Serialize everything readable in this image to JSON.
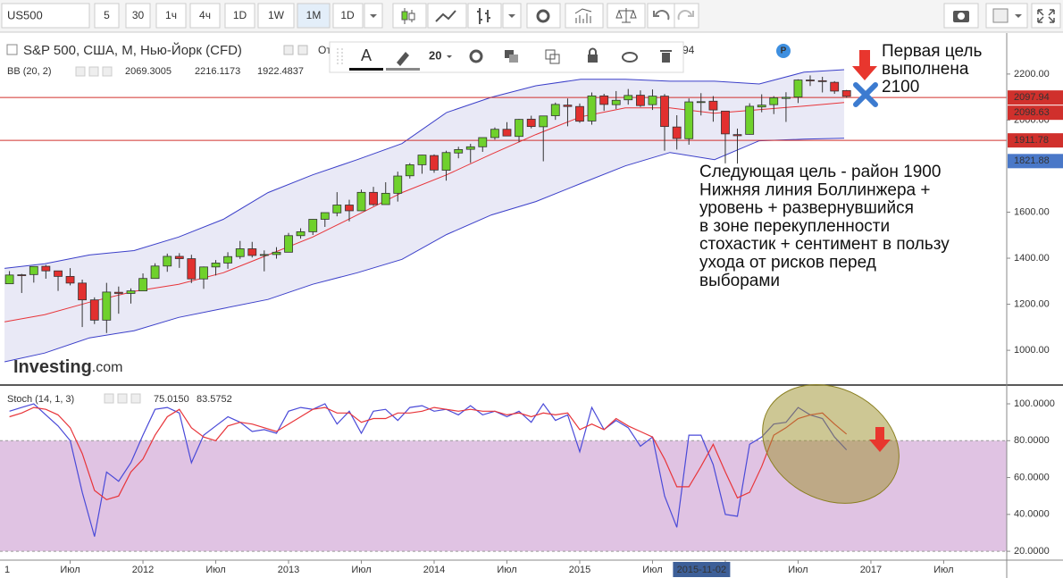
{
  "toolbar": {
    "symbol": "US500",
    "intervals": [
      "5",
      "30",
      "1ч",
      "4ч",
      "1D",
      "1W",
      "1M"
    ],
    "active_index": 6,
    "range": "1D",
    "text_tool": "A",
    "font_size": "20"
  },
  "chart_data": [
    {
      "type": "candlestick",
      "title": "S&P 500, США, M, Нью-Йорк (CFD)",
      "title_extra": "От",
      "clipped_text": "94",
      "watermark": "Investing",
      "watermark_suffix": ".com",
      "indicator": {
        "title": "BB (20, 2)",
        "values": [
          2069.3005,
          2216.1173,
          1922.4837
        ],
        "colors": [
          "#d0302c",
          "#3b3fc9",
          "#3b3fc9"
        ]
      },
      "xlim": [
        2011.018,
        2017.933
      ],
      "ylim": [
        853,
        2378
      ],
      "yticks": [
        {
          "value": 2200,
          "label": "2200.00"
        },
        {
          "value": 2000,
          "label": "2000.00"
        },
        {
          "value": 1600,
          "label": "1600.00"
        },
        {
          "value": 1400,
          "label": "1400.00"
        },
        {
          "value": 1200,
          "label": "1200.00"
        },
        {
          "value": 1000,
          "label": "1000.00"
        }
      ],
      "up_color": "#6fd12c",
      "down_color": "#e2302f",
      "band_fill": "#e4e4f4",
      "candles": {
        "x": [
          2011.083,
          2011.167,
          2011.25,
          2011.333,
          2011.417,
          2011.5,
          2011.583,
          2011.667,
          2011.75,
          2011.833,
          2011.917,
          2012,
          2012.083,
          2012.167,
          2012.25,
          2012.333,
          2012.417,
          2012.5,
          2012.583,
          2012.667,
          2012.75,
          2012.833,
          2012.917,
          2013,
          2013.083,
          2013.167,
          2013.25,
          2013.333,
          2013.417,
          2013.5,
          2013.583,
          2013.667,
          2013.75,
          2013.833,
          2013.917,
          2014,
          2014.083,
          2014.167,
          2014.25,
          2014.333,
          2014.417,
          2014.5,
          2014.583,
          2014.667,
          2014.75,
          2014.833,
          2014.917,
          2015,
          2015.083,
          2015.167,
          2015.25,
          2015.333,
          2015.417,
          2015.5,
          2015.583,
          2015.667,
          2015.75,
          2015.833,
          2015.917,
          2016,
          2016.083,
          2016.167,
          2016.25,
          2016.333,
          2016.417,
          2016.5,
          2016.583,
          2016.667,
          2016.75,
          2016.833
        ],
        "open": [
          1289,
          1328,
          1329,
          1365,
          1345,
          1321,
          1292,
          1219,
          1131,
          1252,
          1247,
          1258,
          1312,
          1366,
          1408,
          1398,
          1310,
          1362,
          1379,
          1407,
          1441,
          1412,
          1416,
          1426,
          1498,
          1515,
          1569,
          1597,
          1631,
          1606,
          1686,
          1633,
          1682,
          1758,
          1806,
          1846,
          1782,
          1857,
          1873,
          1884,
          1924,
          1960,
          1929,
          2004,
          1971,
          2019,
          2065,
          2059,
          1996,
          2105,
          2067,
          2088,
          2108,
          2067,
          2104,
          1970,
          1919,
          2080,
          2082,
          2039,
          1937,
          1938,
          2057,
          2067,
          2094,
          2100,
          2174,
          2171,
          2164,
          2128
        ],
        "high": [
          1344,
          1332,
          1364,
          1371,
          1346,
          1357,
          1307,
          1230,
          1293,
          1277,
          1269,
          1334,
          1378,
          1420,
          1422,
          1415,
          1364,
          1392,
          1426,
          1475,
          1471,
          1434,
          1448,
          1510,
          1530,
          1570,
          1597,
          1687,
          1654,
          1698,
          1710,
          1730,
          1776,
          1813,
          1849,
          1851,
          1867,
          1884,
          1897,
          1924,
          1968,
          1991,
          2005,
          2019,
          2018,
          2076,
          2094,
          2072,
          2120,
          2114,
          2126,
          2135,
          2129,
          2133,
          2113,
          2021,
          2094,
          2117,
          2104,
          2039,
          1963,
          2073,
          2112,
          2104,
          2121,
          2177,
          2194,
          2188,
          2169,
          2131
        ],
        "low": [
          1289,
          1249,
          1294,
          1311,
          1258,
          1282,
          1101,
          1114,
          1075,
          1159,
          1203,
          1258,
          1312,
          1341,
          1358,
          1292,
          1267,
          1325,
          1354,
          1397,
          1403,
          1343,
          1398,
          1426,
          1485,
          1501,
          1536,
          1582,
          1560,
          1605,
          1627,
          1633,
          1646,
          1746,
          1767,
          1771,
          1737,
          1834,
          1814,
          1862,
          1915,
          1930,
          1904,
          1964,
          1821,
          2001,
          1973,
          1988,
          1980,
          2040,
          2048,
          2067,
          2057,
          2044,
          1867,
          1872,
          1893,
          2020,
          1993,
          1812,
          1811,
          1937,
          2034,
          2026,
          1992,
          2074,
          2148,
          2120,
          2114,
          2097
        ],
        "close": [
          1327,
          1326,
          1364,
          1345,
          1321,
          1292,
          1219,
          1131,
          1253,
          1247,
          1258,
          1312,
          1366,
          1408,
          1398,
          1310,
          1362,
          1379,
          1407,
          1441,
          1412,
          1416,
          1426,
          1498,
          1515,
          1569,
          1598,
          1631,
          1606,
          1686,
          1633,
          1682,
          1757,
          1806,
          1848,
          1783,
          1859,
          1872,
          1884,
          1924,
          1960,
          1931,
          2003,
          1972,
          2018,
          2068,
          2059,
          1995,
          2105,
          2068,
          2086,
          2107,
          2063,
          2104,
          1972,
          1920,
          2079,
          2080,
          2044,
          1940,
          1932,
          2060,
          2065,
          2097,
          2099,
          2174,
          2171,
          2168,
          2126,
          2103
        ]
      },
      "x": [
        2011.049,
        2011.325,
        2011.632,
        2011.939,
        2012.245,
        2012.552,
        2012.859,
        2013.166,
        2013.472,
        2013.779,
        2014.086,
        2014.393,
        2014.699,
        2015.006,
        2015.313,
        2015.62,
        2015.926,
        2016.233,
        2016.54,
        2016.816
      ],
      "series": [
        {
          "color": "#3b3fc9",
          "values": [
            1356,
            1376,
            1414,
            1433,
            1492,
            1569,
            1685,
            1762,
            1828,
            1898,
            2033,
            2099,
            2149,
            2177,
            2177,
            2169,
            2169,
            2157,
            2208,
            2219
          ]
        },
        {
          "color": "#e8353a",
          "values": [
            1124,
            1155,
            1209,
            1256,
            1287,
            1337,
            1414,
            1492,
            1588,
            1685,
            1762,
            1852,
            1937,
            2014,
            2053,
            2053,
            2030,
            2045,
            2061,
            2076
          ]
        },
        {
          "color": "#3b3fc9",
          "values": [
            950,
            988,
            1054,
            1085,
            1143,
            1182,
            1221,
            1287,
            1337,
            1395,
            1503,
            1588,
            1646,
            1724,
            1801,
            1859,
            1828,
            1910,
            1917,
            1921
          ]
        }
      ],
      "price_labels": [
        {
          "value": 2097.94,
          "color": "#d0302c",
          "line": true
        },
        {
          "value": 2098.63,
          "color": "#d0302c"
        },
        {
          "value": 1911.78,
          "color": "#d0302c",
          "line": true
        },
        {
          "value": 1821.88,
          "color": "#4a78c8"
        }
      ],
      "annotation": [
        "Первая цель",
        "выполнена",
        "2100"
      ],
      "note": [
        "Следующая цель - район 1900",
        "Нижняя линия Боллинжера +",
        "уровень + развернувшийся",
        "в зоне перекупленности",
        "стохастик + сентимент в пользу",
        "ухода от рисков перед",
        "выборами"
      ]
    },
    {
      "type": "line",
      "title": "Stoch (14, 1, 3)",
      "legend_values": [
        {
          "value": 75.015,
          "label": "75.0150"
        },
        83.5752
      ],
      "xlim": [
        2011.018,
        2017.933
      ],
      "ylim": [
        15.2,
        109.7
      ],
      "yticks": [
        {
          "value": 100,
          "label": "100.0000"
        },
        {
          "value": 80,
          "label": "80.0000"
        },
        {
          "value": 60,
          "label": "60.0000"
        },
        {
          "value": 40,
          "label": "40.0000"
        },
        {
          "value": 20,
          "label": "20.0000"
        }
      ],
      "band": [
        20,
        80
      ],
      "band_color": "#e0c3e3",
      "xticks": [
        {
          "value": 2011,
          "label": "1"
        },
        {
          "value": 2011.5,
          "label": "Июл"
        },
        2012,
        {
          "value": 2012.5,
          "label": "Июл"
        },
        2013,
        {
          "value": 2013.5,
          "label": "Июл"
        },
        2014,
        {
          "value": 2014.5,
          "label": "Июл"
        },
        2015,
        {
          "value": 2015.5,
          "label": "Июл"
        },
        {
          "value": 2016,
          "label": "6"
        },
        {
          "value": 2016.5,
          "label": "Июл"
        },
        2017,
        {
          "value": 2017.5,
          "label": "Июл"
        }
      ],
      "crosshair": {
        "value": 2015.837,
        "label": "2015-11-02"
      },
      "series": [
        {
          "color": "#4a4ad8",
          "values": [
            96,
            98,
            100,
            94,
            88,
            80,
            52,
            28,
            63,
            58,
            68,
            83,
            97,
            98,
            95,
            68,
            83,
            88,
            93,
            90,
            85,
            86,
            84,
            96,
            98,
            97,
            100,
            89,
            96,
            84,
            96,
            97,
            91,
            98,
            99,
            96,
            97,
            94,
            99,
            94,
            96,
            93,
            96,
            90,
            100,
            91,
            94,
            74,
            98,
            86,
            91,
            87,
            77,
            82,
            50,
            33,
            83,
            83,
            67,
            40,
            39,
            78,
            82,
            89,
            90,
            98,
            94,
            92,
            82,
            75.015
          ]
        },
        {
          "color": "#e8353a",
          "values": [
            93,
            95,
            98,
            97,
            94,
            87,
            73,
            53,
            48,
            50,
            63,
            70,
            83,
            93,
            97,
            87,
            82,
            80,
            88,
            90,
            89,
            87,
            85,
            89,
            93,
            97,
            98,
            95,
            95,
            90,
            92,
            92,
            95,
            95,
            96,
            98,
            97,
            96,
            97,
            96,
            96,
            94,
            95,
            93,
            95,
            94,
            95,
            86,
            89,
            86,
            92,
            88,
            85,
            82,
            70,
            55,
            55,
            66,
            78,
            63,
            49,
            52,
            66,
            83,
            87,
            92,
            94,
            95,
            89,
            83.5752
          ]
        }
      ]
    }
  ]
}
